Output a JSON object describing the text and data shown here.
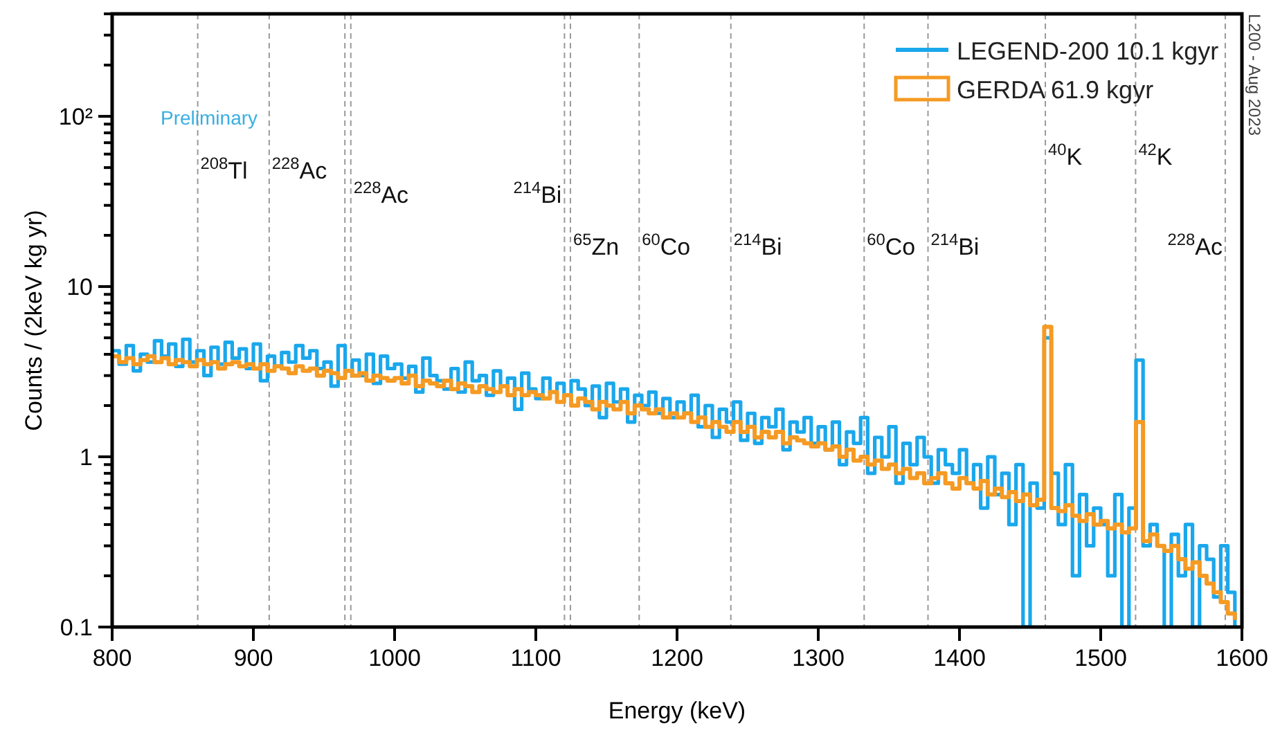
{
  "chart_data": {
    "type": "step",
    "xlabel": "Energy (keV)",
    "ylabel": "Counts / (2keV kg yr)",
    "log": "y",
    "legend": "top right",
    "line_style": "solid",
    "xlim": [
      800,
      1600
    ],
    "xticks": [
      800,
      900,
      1000,
      1100,
      1200,
      1300,
      1400,
      1500,
      1600
    ],
    "ylim": [
      0.1,
      400
    ],
    "yticks": [
      {
        "value": 0.1,
        "label": "0.1"
      },
      {
        "value": 0.2,
        "label": null
      },
      {
        "value": 0.3,
        "label": null
      },
      {
        "value": 0.4,
        "label": null
      },
      {
        "value": 0.5,
        "label": null
      },
      {
        "value": 0.6,
        "label": null
      },
      {
        "value": 0.7,
        "label": null
      },
      {
        "value": 0.8,
        "label": null
      },
      {
        "value": 0.9,
        "label": null
      },
      {
        "value": 1,
        "label": "1"
      },
      {
        "value": 2,
        "label": null
      },
      {
        "value": 3,
        "label": null
      },
      {
        "value": 4,
        "label": null
      },
      {
        "value": 5,
        "label": null
      },
      {
        "value": 6,
        "label": null
      },
      {
        "value": 7,
        "label": null
      },
      {
        "value": 8,
        "label": null
      },
      {
        "value": 9,
        "label": null
      },
      {
        "value": 10,
        "label": "10"
      },
      {
        "value": 20,
        "label": null
      },
      {
        "value": 30,
        "label": null
      },
      {
        "value": 40,
        "label": null
      },
      {
        "value": 50,
        "label": null
      },
      {
        "value": 60,
        "label": null
      },
      {
        "value": 70,
        "label": null
      },
      {
        "value": 80,
        "label": null
      },
      {
        "value": 90,
        "label": null
      },
      {
        "value": 100,
        "label": "10²"
      },
      {
        "value": 200,
        "label": null
      },
      {
        "value": 300,
        "label": null
      },
      {
        "value": 400,
        "label": null
      }
    ],
    "series": [
      {
        "name": "LEGEND-200 10.1 kgyr",
        "color": "#1aa7ec",
        "x": [
          800,
          805,
          810,
          815,
          820,
          825,
          830,
          835,
          840,
          845,
          850,
          855,
          860,
          865,
          870,
          875,
          880,
          885,
          890,
          895,
          900,
          905,
          910,
          915,
          920,
          925,
          930,
          935,
          940,
          945,
          950,
          955,
          960,
          965,
          970,
          975,
          980,
          985,
          990,
          995,
          1000,
          1005,
          1010,
          1015,
          1020,
          1025,
          1030,
          1035,
          1040,
          1045,
          1050,
          1055,
          1060,
          1065,
          1070,
          1075,
          1080,
          1085,
          1090,
          1095,
          1100,
          1105,
          1110,
          1115,
          1120,
          1125,
          1130,
          1135,
          1140,
          1145,
          1150,
          1155,
          1160,
          1165,
          1170,
          1175,
          1180,
          1185,
          1190,
          1195,
          1200,
          1205,
          1210,
          1215,
          1220,
          1225,
          1230,
          1235,
          1240,
          1245,
          1250,
          1255,
          1260,
          1265,
          1270,
          1275,
          1280,
          1285,
          1290,
          1295,
          1300,
          1305,
          1310,
          1315,
          1320,
          1325,
          1330,
          1335,
          1340,
          1345,
          1350,
          1355,
          1360,
          1365,
          1370,
          1375,
          1380,
          1385,
          1390,
          1395,
          1400,
          1405,
          1410,
          1415,
          1420,
          1425,
          1430,
          1435,
          1440,
          1445,
          1450,
          1455,
          1460,
          1465,
          1470,
          1475,
          1480,
          1485,
          1490,
          1495,
          1500,
          1505,
          1510,
          1515,
          1520,
          1525,
          1530,
          1535,
          1540,
          1545,
          1550,
          1555,
          1560,
          1565,
          1570,
          1575,
          1580,
          1585,
          1590,
          1595
        ],
        "values": [
          4.2,
          3.5,
          4.5,
          3.2,
          4.0,
          3.6,
          4.8,
          3.9,
          4.6,
          3.4,
          4.9,
          3.6,
          4.2,
          3.0,
          4.4,
          3.5,
          4.7,
          3.8,
          4.3,
          3.3,
          4.6,
          2.8,
          3.9,
          3.4,
          4.1,
          3.6,
          4.5,
          3.8,
          4.2,
          3.3,
          3.6,
          2.6,
          4.5,
          3.2,
          3.7,
          3.0,
          4.0,
          2.7,
          3.9,
          3.3,
          3.5,
          2.9,
          3.4,
          2.4,
          3.8,
          3.0,
          2.8,
          2.5,
          3.3,
          2.4,
          3.6,
          2.8,
          3.0,
          2.3,
          3.2,
          2.6,
          2.9,
          1.9,
          3.1,
          2.5,
          2.2,
          2.9,
          2.4,
          2.7,
          2.3,
          2.8,
          2.5,
          2.0,
          2.6,
          1.7,
          2.7,
          2.1,
          2.5,
          1.6,
          2.3,
          2.0,
          2.4,
          1.8,
          2.2,
          1.7,
          2.1,
          1.8,
          2.3,
          1.5,
          2.0,
          1.3,
          1.9,
          1.6,
          2.1,
          1.25,
          1.8,
          1.2,
          1.7,
          1.5,
          1.9,
          1.1,
          1.6,
          1.4,
          1.7,
          1.2,
          1.5,
          1.1,
          1.6,
          0.9,
          1.4,
          1.2,
          1.7,
          0.8,
          1.3,
          1.0,
          1.5,
          0.7,
          1.2,
          0.9,
          1.3,
          1.0,
          0.7,
          1.1,
          0.9,
          0.8,
          1.1,
          0.7,
          0.9,
          0.5,
          1.0,
          0.6,
          0.8,
          0.4,
          0.9,
          0.1,
          0.7,
          0.5,
          5.0,
          0.8,
          0.4,
          0.9,
          0.2,
          0.6,
          0.3,
          0.5,
          0.4,
          0.2,
          0.6,
          0.1,
          0.5,
          3.7,
          0.3,
          0.4,
          0.3,
          0.1,
          0.35,
          0.2,
          0.4,
          0.1,
          0.3,
          0.25,
          0.15,
          0.3,
          0.16,
          0.1
        ]
      },
      {
        "name": "GERDA 61.9 kgyr",
        "color": "#f59a23",
        "x": [
          800,
          805,
          810,
          815,
          820,
          825,
          830,
          835,
          840,
          845,
          850,
          855,
          860,
          865,
          870,
          875,
          880,
          885,
          890,
          895,
          900,
          905,
          910,
          915,
          920,
          925,
          930,
          935,
          940,
          945,
          950,
          955,
          960,
          965,
          970,
          975,
          980,
          985,
          990,
          995,
          1000,
          1005,
          1010,
          1015,
          1020,
          1025,
          1030,
          1035,
          1040,
          1045,
          1050,
          1055,
          1060,
          1065,
          1070,
          1075,
          1080,
          1085,
          1090,
          1095,
          1100,
          1105,
          1110,
          1115,
          1120,
          1125,
          1130,
          1135,
          1140,
          1145,
          1150,
          1155,
          1160,
          1165,
          1170,
          1175,
          1180,
          1185,
          1190,
          1195,
          1200,
          1205,
          1210,
          1215,
          1220,
          1225,
          1230,
          1235,
          1240,
          1245,
          1250,
          1255,
          1260,
          1265,
          1270,
          1275,
          1280,
          1285,
          1290,
          1295,
          1300,
          1305,
          1310,
          1315,
          1320,
          1325,
          1330,
          1335,
          1340,
          1345,
          1350,
          1355,
          1360,
          1365,
          1370,
          1375,
          1380,
          1385,
          1390,
          1395,
          1400,
          1405,
          1410,
          1415,
          1420,
          1425,
          1430,
          1435,
          1440,
          1445,
          1450,
          1455,
          1460,
          1465,
          1470,
          1475,
          1480,
          1485,
          1490,
          1495,
          1500,
          1505,
          1510,
          1515,
          1520,
          1525,
          1530,
          1535,
          1540,
          1545,
          1550,
          1555,
          1560,
          1565,
          1570,
          1575,
          1580,
          1585,
          1590,
          1595
        ],
        "values": [
          3.9,
          3.6,
          3.8,
          3.5,
          3.7,
          3.9,
          3.6,
          3.8,
          3.5,
          3.7,
          3.6,
          3.4,
          3.7,
          3.5,
          3.6,
          3.3,
          3.5,
          3.6,
          3.4,
          3.5,
          3.3,
          3.5,
          3.2,
          3.4,
          3.3,
          3.1,
          3.4,
          3.2,
          3.3,
          3.0,
          3.2,
          3.1,
          2.9,
          3.2,
          3.0,
          3.1,
          2.8,
          3.0,
          2.9,
          2.8,
          2.9,
          2.7,
          3.0,
          2.6,
          2.8,
          2.7,
          2.6,
          2.8,
          2.5,
          2.7,
          2.6,
          2.4,
          2.6,
          2.5,
          2.4,
          2.6,
          2.3,
          2.5,
          2.3,
          2.4,
          2.3,
          2.2,
          2.4,
          2.1,
          2.3,
          2.0,
          2.2,
          2.1,
          1.9,
          2.1,
          2.0,
          1.9,
          2.1,
          1.8,
          2.0,
          1.9,
          1.8,
          1.9,
          1.7,
          1.8,
          1.7,
          1.8,
          1.6,
          1.7,
          1.5,
          1.6,
          1.5,
          1.4,
          1.6,
          1.4,
          1.5,
          1.3,
          1.4,
          1.3,
          1.4,
          1.2,
          1.3,
          1.25,
          1.2,
          1.15,
          1.2,
          1.1,
          1.15,
          1.0,
          1.1,
          0.95,
          1.0,
          0.9,
          0.95,
          0.85,
          0.9,
          0.8,
          0.85,
          0.75,
          0.8,
          0.7,
          0.75,
          0.8,
          0.7,
          0.65,
          0.75,
          0.7,
          0.65,
          0.72,
          0.6,
          0.65,
          0.58,
          0.62,
          0.55,
          0.6,
          0.52,
          0.56,
          5.8,
          0.5,
          0.48,
          0.52,
          0.45,
          0.42,
          0.46,
          0.4,
          0.42,
          0.38,
          0.4,
          0.36,
          0.38,
          1.6,
          0.32,
          0.35,
          0.3,
          0.28,
          0.3,
          0.25,
          0.22,
          0.24,
          0.2,
          0.18,
          0.16,
          0.14,
          0.12,
          0.11
        ]
      }
    ],
    "ref_lines": [
      {
        "axis": "x",
        "value": 860.6,
        "label": null,
        "color": "#999999",
        "line_style": "dashed"
      },
      {
        "axis": "x",
        "value": 911.2,
        "label": null,
        "color": "#999999",
        "line_style": "dashed"
      },
      {
        "axis": "x",
        "value": 964.8,
        "label": null,
        "color": "#999999",
        "line_style": "dashed"
      },
      {
        "axis": "x",
        "value": 969.0,
        "label": null,
        "color": "#999999",
        "line_style": "dashed"
      },
      {
        "axis": "x",
        "value": 1120.3,
        "label": null,
        "color": "#999999",
        "line_style": "dashed"
      },
      {
        "axis": "x",
        "value": 1124.5,
        "label": null,
        "color": "#999999",
        "line_style": "dashed"
      },
      {
        "axis": "x",
        "value": 1173.2,
        "label": null,
        "color": "#999999",
        "line_style": "dashed"
      },
      {
        "axis": "x",
        "value": 1238.1,
        "label": null,
        "color": "#999999",
        "line_style": "dashed"
      },
      {
        "axis": "x",
        "value": 1332.5,
        "label": null,
        "color": "#999999",
        "line_style": "dashed"
      },
      {
        "axis": "x",
        "value": 1377.7,
        "label": null,
        "color": "#999999",
        "line_style": "dashed"
      },
      {
        "axis": "x",
        "value": 1460.8,
        "label": null,
        "color": "#999999",
        "line_style": "dashed"
      },
      {
        "axis": "x",
        "value": 1524.7,
        "label": null,
        "color": "#999999",
        "line_style": "dashed"
      },
      {
        "axis": "x",
        "value": 1588.2,
        "label": null,
        "color": "#999999",
        "line_style": "dashed"
      }
    ],
    "annotations": [
      "Preliminary",
      "L200 - Aug 2023",
      {
        "text": "$^{208}$Tl",
        "x": 860.6,
        "y": 43
      },
      {
        "text": "$^{228}$Ac",
        "x": 911.2,
        "y": 43
      },
      {
        "text": "$^{228}$Ac",
        "x": 969.0,
        "y": 31
      },
      {
        "text": "$^{214}$Bi",
        "x": 1120.3,
        "y": 31
      },
      {
        "text": "$^{65}$Zn",
        "x": 1124.5,
        "y": 15.4
      },
      {
        "text": "$^{60}$Co",
        "x": 1173.2,
        "y": 15.4
      },
      {
        "text": "$^{214}$Bi",
        "x": 1238.1,
        "y": 15.4
      },
      {
        "text": "$^{60}$Co",
        "x": 1332.5,
        "y": 15.4
      },
      {
        "text": "$^{214}$Bi",
        "x": 1377.7,
        "y": 15.4
      },
      {
        "text": "$^{40}$K",
        "x": 1460.8,
        "y": 52
      },
      {
        "text": "$^{42}$K",
        "x": 1524.7,
        "y": 52
      },
      {
        "text": "$^{228}$Ac",
        "x": 1588.2,
        "y": 15.4
      }
    ]
  }
}
